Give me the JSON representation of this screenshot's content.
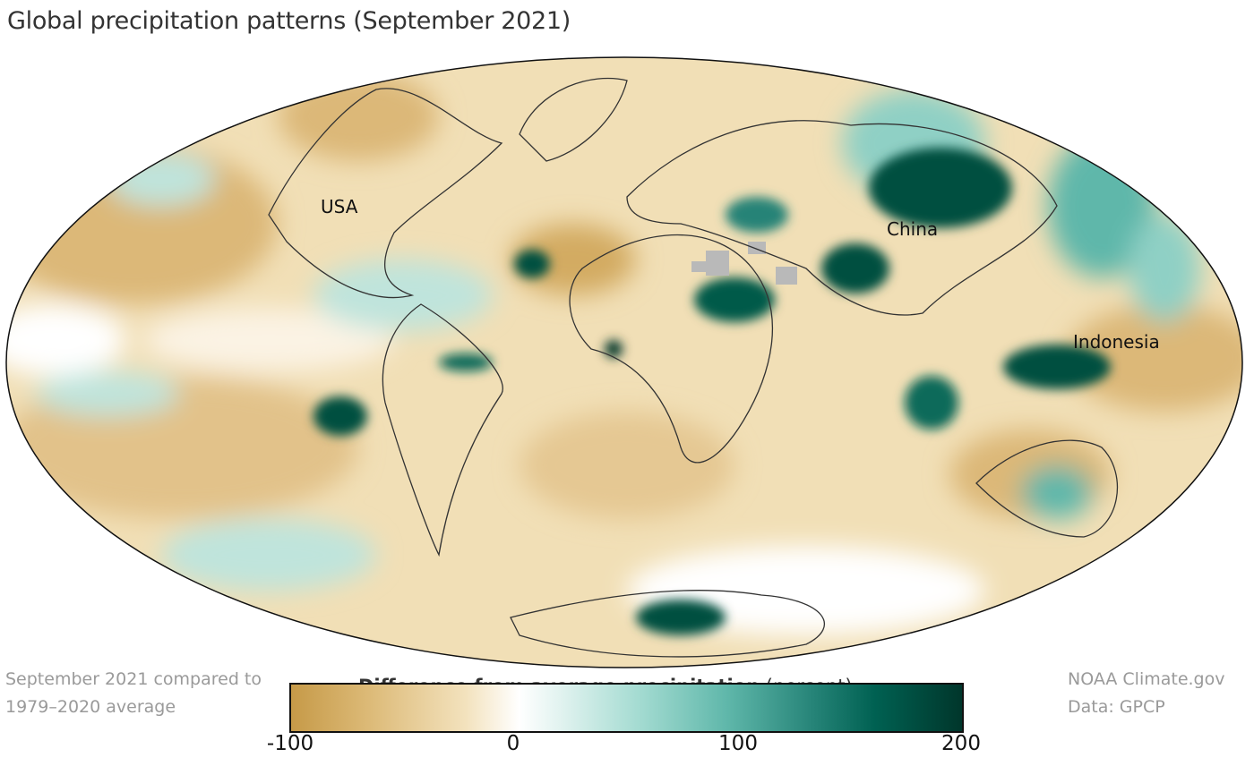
{
  "title": "Global precipitation patterns (September 2021)",
  "map_labels": {
    "usa": "USA",
    "china": "China",
    "indonesia": "Indonesia"
  },
  "note_left": {
    "line1": "September 2021 compared to",
    "line2": "1979–2020 average"
  },
  "note_right": {
    "line1": "NOAA Climate.gov",
    "line2": "Data: GPCP"
  },
  "legend": {
    "title_bold": "Difference from average precipitation",
    "title_unit": "(percent)",
    "ticks": [
      "-100",
      "0",
      "100",
      "200"
    ],
    "range": [
      -100,
      200
    ],
    "colors": {
      "dry": "#c69a48",
      "neutral": "#ffffff",
      "wet": "#00362b"
    }
  }
}
